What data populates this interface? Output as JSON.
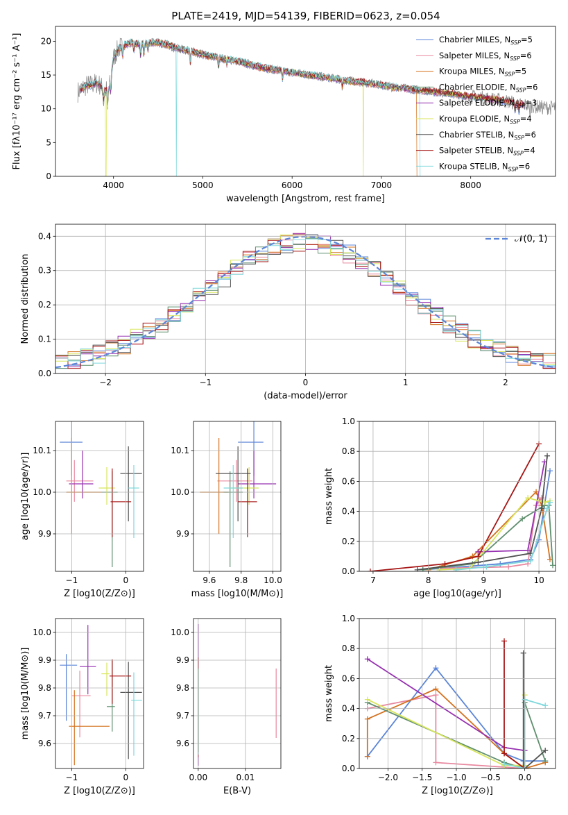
{
  "figure": {
    "title": "PLATE=2419, MJD=54139, FIBERID=0623, z=0.054"
  },
  "models": [
    {
      "name": "Chabrier MILES",
      "nssp": 5,
      "color": "#5b85d8"
    },
    {
      "name": "Salpeter MILES",
      "nssp": 6,
      "color": "#e8889f"
    },
    {
      "name": "Kroupa MILES",
      "nssp": 5,
      "color": "#d4711e"
    },
    {
      "name": "Chabrier ELODIE",
      "nssp": 6,
      "color": "#5f8f6e"
    },
    {
      "name": "Salpeter ELODIE",
      "nssp": 3,
      "color": "#9630b0"
    },
    {
      "name": "Kroupa ELODIE",
      "nssp": 4,
      "color": "#d8e65a"
    },
    {
      "name": "Chabrier STELIB",
      "nssp": 6,
      "color": "#505050"
    },
    {
      "name": "Salpeter STELIB",
      "nssp": 4,
      "color": "#a71616"
    },
    {
      "name": "Kroupa STELIB",
      "nssp": 6,
      "color": "#7fd8dc"
    }
  ],
  "chart_data": [
    {
      "id": "spectrum",
      "type": "line",
      "xlabel": "wavelength [Angstrom, rest frame]",
      "ylabel": "Flux [fλ10⁻¹⁷ erg cm⁻² s⁻¹ A⁻¹]",
      "xlim": [
        3350,
        8950
      ],
      "ylim": [
        0,
        22.2
      ],
      "xticks": [
        4000,
        5000,
        6000,
        7000,
        8000
      ],
      "yticks": [
        0,
        5,
        10,
        15,
        20
      ],
      "legend_position": "top-right",
      "legend_label_format": "{name}, N_SSP={nssp}",
      "continuum": {
        "x": [
          3600,
          3650,
          3700,
          3750,
          3800,
          3850,
          3900,
          3950,
          4000,
          4050,
          4100,
          4200,
          4300,
          4400,
          4500,
          4600,
          4700,
          4800,
          4900,
          5000,
          5200,
          5400,
          5600,
          5800,
          6000,
          6200,
          6400,
          6600,
          6800,
          7000,
          7200,
          7400,
          7600,
          7800,
          8000,
          8200,
          8400,
          8600,
          8800
        ],
        "y": [
          12.5,
          13.0,
          13.5,
          13.5,
          13.8,
          13.5,
          12.6,
          13.0,
          17.5,
          18.8,
          19.3,
          19.8,
          19.5,
          19.7,
          19.8,
          19.5,
          19.0,
          18.7,
          18.4,
          18.0,
          17.5,
          17.0,
          16.3,
          15.8,
          15.4,
          15.0,
          14.6,
          14.2,
          13.9,
          13.5,
          13.1,
          12.8,
          12.5,
          12.2,
          11.8,
          11.5,
          11.1,
          10.6,
          10.2
        ]
      },
      "model_start_x": 3630,
      "model_end_x": 8600,
      "data_end_x": 8950,
      "dropouts": [
        {
          "series": "Kroupa ELODIE",
          "x": 3915
        },
        {
          "series": "Kroupa STELIB",
          "x": 4705
        },
        {
          "series": "Kroupa ELODIE",
          "x": 6800
        },
        {
          "series": "Kroupa MILES",
          "x": 7400
        },
        {
          "series": "Kroupa STELIB",
          "x": 7435
        }
      ]
    },
    {
      "id": "residuals",
      "type": "histogram",
      "xlabel": "(data-model)/error",
      "ylabel": "Normed distribution",
      "xlim": [
        -2.5,
        2.5
      ],
      "ylim": [
        0,
        0.435
      ],
      "xticks": [
        -2,
        -1,
        0,
        1,
        2
      ],
      "yticks": [
        0.0,
        0.1,
        0.2,
        0.3,
        0.4
      ],
      "bins": 40,
      "bin_width": 0.125,
      "reference": {
        "label": "𝒩(0, 1)",
        "mean": 0,
        "sigma": 1,
        "style": "dashed",
        "color": "#5b85d8"
      },
      "legend_position": "top-right"
    },
    {
      "id": "age_vs_Z",
      "type": "errorbar",
      "xlabel": "Z [log10(Z/Z⊙)]",
      "ylabel": "age [log10(age/yr)]",
      "xlim": [
        -1.3,
        0.33
      ],
      "ylim": [
        9.81,
        10.17
      ],
      "xticks": [
        -1,
        0
      ],
      "yticks": [
        9.9,
        10.0,
        10.1
      ],
      "points": [
        {
          "series": "Chabrier MILES",
          "x": -1.0,
          "y": 10.12,
          "xerr": [
            0.22,
            0.2
          ],
          "yerr": [
            0.08,
            0.05
          ]
        },
        {
          "series": "Salpeter MILES",
          "x": -0.95,
          "y": 10.027,
          "xerr": [
            0.15,
            0.35
          ],
          "yerr": [
            0.05,
            0.05
          ]
        },
        {
          "series": "Kroupa MILES",
          "x": -1.0,
          "y": 10.0,
          "xerr": [
            0.1,
            0.55
          ],
          "yerr": [
            0.1,
            0.13
          ]
        },
        {
          "series": "Chabrier ELODIE",
          "x": -0.25,
          "y": 10.0,
          "xerr": [
            0.2,
            0.1
          ],
          "yerr": [
            0.18,
            0.05
          ]
        },
        {
          "series": "Salpeter ELODIE",
          "x": -0.8,
          "y": 10.02,
          "xerr": [
            0.25,
            0.2
          ],
          "yerr": [
            0.035,
            0.08
          ]
        },
        {
          "series": "Kroupa ELODIE",
          "x": -0.35,
          "y": 10.01,
          "xerr": [
            0.15,
            0.15
          ],
          "yerr": [
            0.04,
            0.05
          ]
        },
        {
          "series": "Chabrier STELIB",
          "x": 0.05,
          "y": 10.045,
          "xerr": [
            0.15,
            0.25
          ],
          "yerr": [
            0.115,
            0.065
          ]
        },
        {
          "series": "Salpeter STELIB",
          "x": -0.25,
          "y": 9.977,
          "xerr": [
            0.03,
            0.35
          ],
          "yerr": [
            0.085,
            0.08
          ]
        },
        {
          "series": "Kroupa STELIB",
          "x": 0.15,
          "y": 10.01,
          "xerr": [
            0.1,
            0.1
          ],
          "yerr": [
            0.12,
            0.055
          ]
        }
      ]
    },
    {
      "id": "age_vs_mass",
      "type": "errorbar",
      "xlabel": "mass [log10(M/M⊙)]",
      "ylabel": "",
      "xlim": [
        9.5,
        10.05
      ],
      "ylim": [
        9.81,
        10.17
      ],
      "xticks": [
        9.6,
        9.8,
        10.0
      ],
      "yticks": [
        9.9,
        10.0,
        10.1
      ],
      "points": [
        {
          "series": "Chabrier MILES",
          "x": 9.88,
          "y": 10.12,
          "xerr": [
            0.1,
            0.06
          ],
          "yerr": [
            0.08,
            0.05
          ]
        },
        {
          "series": "Salpeter MILES",
          "x": 9.77,
          "y": 10.027,
          "xerr": [
            0.12,
            0.1
          ],
          "yerr": [
            0.05,
            0.05
          ]
        },
        {
          "series": "Kroupa MILES",
          "x": 9.66,
          "y": 10.0,
          "xerr": [
            0.12,
            0.06
          ],
          "yerr": [
            0.1,
            0.13
          ]
        },
        {
          "series": "Chabrier ELODIE",
          "x": 9.73,
          "y": 10.0,
          "xerr": [
            0.04,
            0.08
          ],
          "yerr": [
            0.18,
            0.05
          ]
        },
        {
          "series": "Salpeter ELODIE",
          "x": 9.88,
          "y": 10.02,
          "xerr": [
            0.1,
            0.14
          ],
          "yerr": [
            0.035,
            0.08
          ]
        },
        {
          "series": "Kroupa ELODIE",
          "x": 9.85,
          "y": 10.01,
          "xerr": [
            0.12,
            0.06
          ],
          "yerr": [
            0.04,
            0.05
          ]
        },
        {
          "series": "Chabrier STELIB",
          "x": 9.78,
          "y": 10.045,
          "xerr": [
            0.14,
            0.08
          ],
          "yerr": [
            0.115,
            0.065
          ]
        },
        {
          "series": "Salpeter STELIB",
          "x": 9.84,
          "y": 9.977,
          "xerr": [
            0.06,
            0.06
          ],
          "yerr": [
            0.085,
            0.08
          ]
        },
        {
          "series": "Kroupa STELIB",
          "x": 9.75,
          "y": 10.01,
          "xerr": [
            0.06,
            0.06
          ],
          "yerr": [
            0.12,
            0.055
          ]
        }
      ]
    },
    {
      "id": "weight_vs_age",
      "type": "line",
      "xlabel": "age [log10(age/yr)]",
      "ylabel": "mass weight",
      "xlim": [
        6.75,
        10.3
      ],
      "ylim": [
        0,
        1.0
      ],
      "xticks": [
        7,
        8,
        9,
        10
      ],
      "yticks": [
        0.0,
        0.2,
        0.4,
        0.6,
        0.8,
        1.0
      ],
      "series": [
        {
          "name": "Chabrier MILES",
          "x": [
            7.9,
            9.3,
            9.85,
            10.0,
            10.2
          ],
          "y": [
            0.01,
            0.05,
            0.08,
            0.21,
            0.67
          ]
        },
        {
          "name": "Salpeter MILES",
          "x": [
            8.2,
            9.45,
            9.8,
            9.95,
            10.05
          ],
          "y": [
            0.02,
            0.03,
            0.05,
            0.44,
            0.49
          ]
        },
        {
          "name": "Kroupa MILES",
          "x": [
            8.0,
            8.8,
            9.95,
            10.05,
            10.2
          ],
          "y": [
            0.01,
            0.1,
            0.53,
            0.44,
            0.08
          ]
        },
        {
          "name": "Chabrier ELODIE",
          "x": [
            7.9,
            8.8,
            9.7,
            10.1,
            10.18,
            10.25
          ],
          "y": [
            0.01,
            0.05,
            0.35,
            0.44,
            0.44,
            0.04
          ]
        },
        {
          "name": "Salpeter ELODIE",
          "x": [
            8.9,
            9.8,
            10.1
          ],
          "y": [
            0.13,
            0.14,
            0.73
          ]
        },
        {
          "name": "Kroupa ELODIE",
          "x": [
            8.2,
            8.75,
            9.8,
            10.1,
            10.2
          ],
          "y": [
            0.01,
            0.02,
            0.49,
            0.46,
            0.47
          ]
        },
        {
          "name": "Chabrier STELIB",
          "x": [
            7.8,
            8.9,
            9.85,
            10.05,
            10.15
          ],
          "y": [
            0.01,
            0.06,
            0.12,
            0.42,
            0.77
          ]
        },
        {
          "name": "Salpeter STELIB",
          "x": [
            6.95,
            8.3,
            8.9,
            10.0
          ],
          "y": [
            0.0,
            0.05,
            0.1,
            0.85
          ]
        },
        {
          "name": "Kroupa STELIB",
          "x": [
            8.5,
            9.05,
            9.85,
            10.15,
            10.2
          ],
          "y": [
            0.01,
            0.03,
            0.07,
            0.42,
            0.46
          ]
        }
      ]
    },
    {
      "id": "mass_vs_Z",
      "type": "errorbar",
      "xlabel": "Z [log10(Z/Z⊙)]",
      "ylabel": "mass [log10(M/M⊙)]",
      "xlim": [
        -1.3,
        0.33
      ],
      "ylim": [
        9.51,
        10.05
      ],
      "xticks": [
        -1,
        0
      ],
      "yticks": [
        9.6,
        9.7,
        9.8,
        9.9,
        10.0
      ],
      "points": [
        {
          "series": "Chabrier MILES",
          "x": -1.1,
          "y": 9.882,
          "xerr": [
            0.12,
            0.2
          ],
          "yerr": [
            0.2,
            0.04
          ]
        },
        {
          "series": "Salpeter MILES",
          "x": -0.85,
          "y": 9.772,
          "xerr": [
            0.15,
            0.2
          ],
          "yerr": [
            0.15,
            0.09
          ]
        },
        {
          "series": "Kroupa MILES",
          "x": -0.95,
          "y": 9.662,
          "xerr": [
            0.1,
            0.65
          ],
          "yerr": [
            0.14,
            0.13
          ]
        },
        {
          "series": "Chabrier ELODIE",
          "x": -0.25,
          "y": 9.733,
          "xerr": [
            0.1,
            0.05
          ],
          "yerr": [
            0.09,
            0.17
          ]
        },
        {
          "series": "Salpeter ELODIE",
          "x": -0.7,
          "y": 9.877,
          "xerr": [
            0.15,
            0.15
          ],
          "yerr": [
            0.1,
            0.15
          ]
        },
        {
          "series": "Kroupa ELODIE",
          "x": -0.35,
          "y": 9.851,
          "xerr": [
            0.1,
            0.05
          ],
          "yerr": [
            0.08,
            0.04
          ]
        },
        {
          "series": "Chabrier STELIB",
          "x": 0.05,
          "y": 9.784,
          "xerr": [
            0.15,
            0.25
          ],
          "yerr": [
            0.24,
            0.11
          ]
        },
        {
          "series": "Salpeter STELIB",
          "x": -0.25,
          "y": 9.843,
          "xerr": [
            0.05,
            0.35
          ],
          "yerr": [
            0.1,
            0.06
          ]
        },
        {
          "series": "Kroupa STELIB",
          "x": 0.15,
          "y": 9.756,
          "xerr": [
            0.05,
            0.15
          ],
          "yerr": [
            0.2,
            0.1
          ]
        }
      ]
    },
    {
      "id": "mass_vs_EBV",
      "type": "errorbar",
      "xlabel": "E(B-V)",
      "ylabel": "",
      "xlim": [
        -0.001,
        0.0175
      ],
      "ylim": [
        9.51,
        10.05
      ],
      "xticks": [
        0.0,
        0.01
      ],
      "xtick_labels": [
        "0.00",
        "0.01"
      ],
      "yticks": [
        9.6,
        9.7,
        9.8,
        9.9,
        10.0
      ],
      "points": [
        {
          "series": "Salpeter ELODIE",
          "x": 0.0,
          "y": 9.85,
          "xerr": [
            0,
            0
          ],
          "yerr": [
            0.33,
            0.18
          ]
        },
        {
          "series": "Salpeter STELIB",
          "x": 0.0,
          "y": 9.75,
          "xerr": [
            0,
            0
          ],
          "yerr": [
            0.2,
            0.16
          ]
        },
        {
          "series": "Kroupa STELIB",
          "x": 0.0,
          "y": 9.76,
          "xerr": [
            0,
            0
          ],
          "yerr": [
            0.2,
            0.11
          ]
        },
        {
          "series": "Chabrier ELODIE",
          "x": 0.0,
          "y": 9.77,
          "xerr": [
            0,
            0
          ],
          "yerr": [
            0.2,
            0.1
          ]
        },
        {
          "series": "Salpeter MILES",
          "x": 0.0165,
          "y": 9.745,
          "xerr": [
            0,
            0
          ],
          "yerr": [
            0.125,
            0.125
          ]
        }
      ]
    },
    {
      "id": "weight_vs_Z",
      "type": "line",
      "xlabel": "Z [log10(Z/Z⊙)]",
      "ylabel": "mass weight",
      "xlim": [
        -2.42,
        0.45
      ],
      "ylim": [
        0,
        1.0
      ],
      "xticks": [
        -2.0,
        -1.5,
        -1.0,
        -0.5,
        0.0
      ],
      "xtick_labels": [
        "−2.0",
        "−1.5",
        "−1.0",
        "−0.5",
        "0.0"
      ],
      "yticks": [
        0.0,
        0.2,
        0.4,
        0.6,
        0.8,
        1.0
      ],
      "series": [
        {
          "name": "Chabrier MILES",
          "x": [
            -2.3,
            -1.3,
            -0.3,
            -0.02,
            0.3
          ],
          "y": [
            0.08,
            0.67,
            0.1,
            0.05,
            0.05
          ]
        },
        {
          "name": "Salpeter MILES",
          "x": [
            -2.3,
            -1.3,
            -1.3,
            0.0
          ],
          "y": [
            0.4,
            0.49,
            0.04,
            0.0
          ]
        },
        {
          "name": "Kroupa MILES",
          "x": [
            -2.3,
            -2.3,
            -1.3,
            -0.3,
            0.0,
            0.3
          ],
          "y": [
            0.08,
            0.33,
            0.53,
            0.1,
            0.0,
            0.04
          ]
        },
        {
          "name": "Chabrier ELODIE",
          "x": [
            -2.3,
            -0.3,
            0.0,
            0.0,
            0.3
          ],
          "y": [
            0.44,
            0.04,
            0.0,
            0.44,
            0.05
          ]
        },
        {
          "name": "Salpeter ELODIE",
          "x": [
            -2.3,
            -0.3,
            0.0
          ],
          "y": [
            0.73,
            0.14,
            0.12
          ]
        },
        {
          "name": "Kroupa ELODIE",
          "x": [
            -2.3,
            -0.3,
            0.0,
            0.0
          ],
          "y": [
            0.46,
            0.02,
            0.02,
            0.49
          ]
        },
        {
          "name": "Chabrier STELIB",
          "x": [
            -0.02,
            -0.02,
            0.0,
            0.3
          ],
          "y": [
            0.77,
            0.0,
            0.0,
            0.12
          ]
        },
        {
          "name": "Salpeter STELIB",
          "x": [
            -0.3,
            -0.3,
            0.0,
            0.0
          ],
          "y": [
            0.85,
            0.1,
            0.0,
            0.0
          ]
        },
        {
          "name": "Kroupa STELIB",
          "x": [
            -0.3,
            0.0,
            0.0,
            0.3
          ],
          "y": [
            0.03,
            0.0,
            0.46,
            0.42
          ]
        }
      ]
    }
  ]
}
